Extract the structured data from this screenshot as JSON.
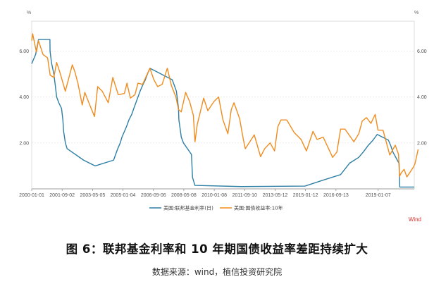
{
  "figure": {
    "caption": "图 6：联邦基金利率和 10 年期国债收益率差距持续扩大",
    "source": "数据来源：wind，植信投资研究院"
  },
  "chart_data": {
    "type": "line",
    "unit_left": "%",
    "unit_right": "%",
    "watermark": "Wind",
    "y_ticks": [
      "2.00",
      "4.00",
      "6.00"
    ],
    "y_tick_values": [
      2,
      4,
      6
    ],
    "ylim": [
      0,
      7.3
    ],
    "xlim": [
      "2000-01-01",
      "2020-12-31"
    ],
    "x_ticks": [
      "2000-01-01",
      "2001-09-02",
      "2003-05-05",
      "2005-01-04",
      "2006-09-06",
      "2008-05-08",
      "2010-01-08",
      "2011-09-10",
      "2013-05-12",
      "2015-01-12",
      "2016-09-13",
      "2019-01-07"
    ],
    "grid": true,
    "legend_position": "bottom",
    "colors": {
      "fed": "#2e7fa5",
      "treasury": "#f08c1e"
    },
    "series": [
      {
        "name": "美国:联邦基金利率(日)",
        "color": "#2e7fa5",
        "points": [
          [
            "2000-01-01",
            5.45
          ],
          [
            "2000-03-20",
            5.85
          ],
          [
            "2000-05-16",
            6.5
          ],
          [
            "2000-12-31",
            6.5
          ],
          [
            "2001-01-03",
            6.0
          ],
          [
            "2001-01-31",
            5.5
          ],
          [
            "2001-03-20",
            5.0
          ],
          [
            "2001-04-18",
            4.5
          ],
          [
            "2001-05-15",
            4.0
          ],
          [
            "2001-06-27",
            3.75
          ],
          [
            "2001-08-21",
            3.5
          ],
          [
            "2001-09-17",
            3.0
          ],
          [
            "2001-10-02",
            2.5
          ],
          [
            "2001-11-06",
            2.0
          ],
          [
            "2001-12-11",
            1.75
          ],
          [
            "2002-11-06",
            1.25
          ],
          [
            "2003-06-25",
            1.0
          ],
          [
            "2004-06-30",
            1.25
          ],
          [
            "2004-08-10",
            1.5
          ],
          [
            "2004-09-21",
            1.75
          ],
          [
            "2004-11-10",
            2.0
          ],
          [
            "2004-12-14",
            2.25
          ],
          [
            "2005-02-02",
            2.5
          ],
          [
            "2005-03-22",
            2.75
          ],
          [
            "2005-05-03",
            3.0
          ],
          [
            "2005-06-30",
            3.25
          ],
          [
            "2005-08-09",
            3.5
          ],
          [
            "2005-09-20",
            3.75
          ],
          [
            "2005-11-01",
            4.0
          ],
          [
            "2005-12-13",
            4.25
          ],
          [
            "2006-01-31",
            4.5
          ],
          [
            "2006-03-28",
            4.75
          ],
          [
            "2006-05-10",
            5.0
          ],
          [
            "2006-06-29",
            5.25
          ],
          [
            "2007-09-18",
            4.75
          ],
          [
            "2007-10-31",
            4.5
          ],
          [
            "2007-12-11",
            4.25
          ],
          [
            "2008-01-22",
            3.5
          ],
          [
            "2008-01-30",
            3.0
          ],
          [
            "2008-03-18",
            2.25
          ],
          [
            "2008-04-30",
            2.0
          ],
          [
            "2008-10-08",
            1.5
          ],
          [
            "2008-10-29",
            0.5
          ],
          [
            "2008-12-16",
            0.15
          ],
          [
            "2011-06-30",
            0.1
          ],
          [
            "2014-12-31",
            0.12
          ],
          [
            "2015-12-16",
            0.37
          ],
          [
            "2016-12-14",
            0.62
          ],
          [
            "2017-03-15",
            0.87
          ],
          [
            "2017-06-14",
            1.12
          ],
          [
            "2017-12-13",
            1.37
          ],
          [
            "2018-03-21",
            1.62
          ],
          [
            "2018-06-13",
            1.87
          ],
          [
            "2018-09-26",
            2.12
          ],
          [
            "2018-12-19",
            2.37
          ],
          [
            "2019-07-31",
            2.12
          ],
          [
            "2019-09-18",
            1.87
          ],
          [
            "2019-10-30",
            1.6
          ],
          [
            "2020-03-03",
            1.1
          ],
          [
            "2020-03-15",
            0.08
          ],
          [
            "2020-12-31",
            0.08
          ]
        ]
      },
      {
        "name": "美国:国债收益率:10年",
        "color": "#f08c1e",
        "points": [
          [
            "2000-01-01",
            6.45
          ],
          [
            "2000-01-20",
            6.75
          ],
          [
            "2000-04-05",
            5.95
          ],
          [
            "2000-05-15",
            6.45
          ],
          [
            "2000-08-15",
            5.85
          ],
          [
            "2000-11-15",
            5.7
          ],
          [
            "2001-01-05",
            4.95
          ],
          [
            "2001-03-20",
            4.85
          ],
          [
            "2001-05-15",
            5.5
          ],
          [
            "2001-07-15",
            5.1
          ],
          [
            "2001-09-20",
            4.6
          ],
          [
            "2001-11-05",
            4.25
          ],
          [
            "2002-03-25",
            5.4
          ],
          [
            "2002-05-15",
            5.1
          ],
          [
            "2002-07-15",
            4.6
          ],
          [
            "2002-10-10",
            3.65
          ],
          [
            "2002-12-01",
            4.2
          ],
          [
            "2003-03-10",
            3.65
          ],
          [
            "2003-06-13",
            3.15
          ],
          [
            "2003-08-15",
            4.45
          ],
          [
            "2003-11-15",
            4.25
          ],
          [
            "2004-03-15",
            3.75
          ],
          [
            "2004-06-14",
            4.85
          ],
          [
            "2004-10-01",
            4.1
          ],
          [
            "2005-02-01",
            4.15
          ],
          [
            "2005-03-25",
            4.6
          ],
          [
            "2005-06-01",
            3.95
          ],
          [
            "2005-09-01",
            4.1
          ],
          [
            "2005-11-01",
            4.6
          ],
          [
            "2006-02-01",
            4.55
          ],
          [
            "2006-06-28",
            5.25
          ],
          [
            "2006-09-15",
            4.75
          ],
          [
            "2006-12-01",
            4.45
          ],
          [
            "2007-03-01",
            4.55
          ],
          [
            "2007-06-12",
            5.25
          ],
          [
            "2007-09-01",
            4.5
          ],
          [
            "2007-12-01",
            4.0
          ],
          [
            "2008-01-23",
            3.45
          ],
          [
            "2008-03-17",
            3.35
          ],
          [
            "2008-06-13",
            4.2
          ],
          [
            "2008-09-01",
            3.8
          ],
          [
            "2008-11-15",
            3.2
          ],
          [
            "2008-12-18",
            2.05
          ],
          [
            "2009-02-01",
            2.8
          ],
          [
            "2009-06-10",
            3.95
          ],
          [
            "2009-09-01",
            3.4
          ],
          [
            "2010-01-01",
            3.8
          ],
          [
            "2010-04-05",
            4.0
          ],
          [
            "2010-07-01",
            3.0
          ],
          [
            "2010-10-08",
            2.4
          ],
          [
            "2010-12-15",
            3.45
          ],
          [
            "2011-02-08",
            3.75
          ],
          [
            "2011-06-01",
            3.05
          ],
          [
            "2011-08-10",
            2.2
          ],
          [
            "2011-09-22",
            1.75
          ],
          [
            "2012-03-20",
            2.35
          ],
          [
            "2012-07-25",
            1.4
          ],
          [
            "2012-10-15",
            1.75
          ],
          [
            "2013-02-01",
            2.0
          ],
          [
            "2013-05-01",
            1.65
          ],
          [
            "2013-07-05",
            2.7
          ],
          [
            "2013-09-05",
            3.0
          ],
          [
            "2013-12-31",
            3.0
          ],
          [
            "2014-05-30",
            2.45
          ],
          [
            "2014-10-15",
            2.15
          ],
          [
            "2015-01-30",
            1.65
          ],
          [
            "2015-06-10",
            2.5
          ],
          [
            "2015-09-01",
            2.15
          ],
          [
            "2016-01-01",
            2.25
          ],
          [
            "2016-07-08",
            1.37
          ],
          [
            "2016-10-01",
            1.6
          ],
          [
            "2016-12-15",
            2.6
          ],
          [
            "2017-03-13",
            2.6
          ],
          [
            "2017-09-07",
            2.05
          ],
          [
            "2017-12-15",
            2.4
          ],
          [
            "2018-02-21",
            2.95
          ],
          [
            "2018-05-17",
            3.1
          ],
          [
            "2018-08-15",
            2.85
          ],
          [
            "2018-11-08",
            3.24
          ],
          [
            "2019-01-03",
            2.56
          ],
          [
            "2019-04-15",
            2.55
          ],
          [
            "2019-08-28",
            1.47
          ],
          [
            "2019-12-15",
            1.9
          ],
          [
            "2020-02-20",
            1.5
          ],
          [
            "2020-03-09",
            0.54
          ],
          [
            "2020-04-15",
            0.7
          ],
          [
            "2020-06-10",
            0.85
          ],
          [
            "2020-08-04",
            0.52
          ],
          [
            "2020-10-15",
            0.75
          ],
          [
            "2020-12-15",
            0.95
          ],
          [
            "2021-01-15",
            1.1
          ],
          [
            "2021-03-19",
            1.72
          ]
        ]
      }
    ]
  }
}
